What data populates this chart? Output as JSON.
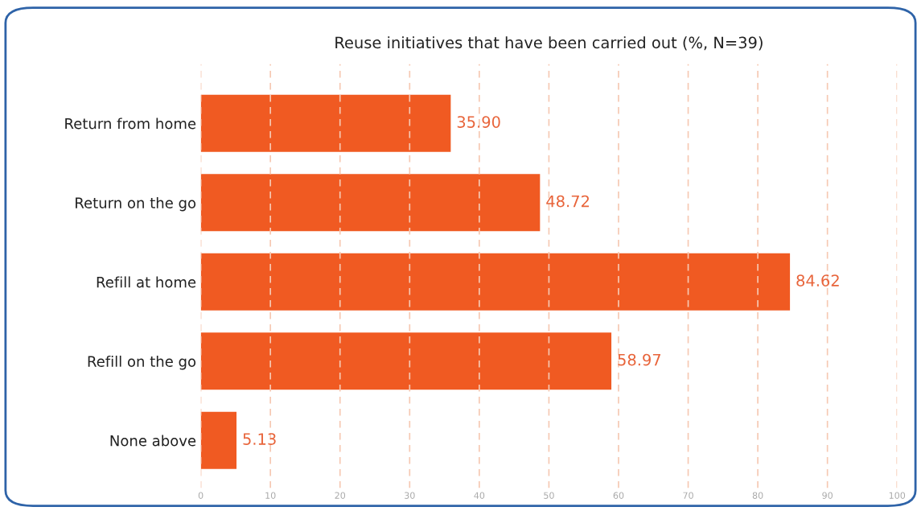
{
  "chart_data": {
    "type": "bar",
    "orientation": "horizontal",
    "title": "Reuse initiatives that have been carried out (%, N=39)",
    "categories": [
      "Return from home",
      "Return on the go",
      "Refill at home",
      "Refill on the go",
      "None above"
    ],
    "values": [
      35.9,
      48.72,
      84.62,
      58.97,
      5.13
    ],
    "value_labels": [
      "35.90",
      "48.72",
      "84.62",
      "58.97",
      "5.13"
    ],
    "color": "#f05a22",
    "xlim": [
      0,
      100
    ],
    "xticks": [
      0,
      10,
      20,
      30,
      40,
      50,
      60,
      70,
      80,
      90,
      100
    ],
    "grid": "x",
    "line_style": "dashed"
  }
}
